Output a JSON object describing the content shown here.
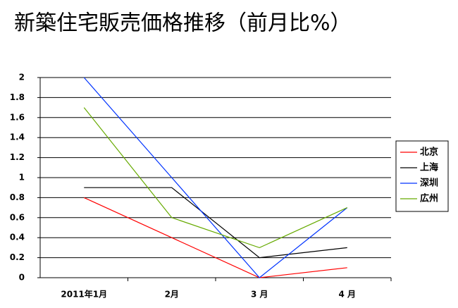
{
  "chart_data": {
    "type": "line",
    "title": "新築住宅販売価格推移（前月比%）",
    "categories": [
      "2011年1月",
      "2月",
      "3 月",
      "4 月"
    ],
    "series": [
      {
        "name": "北京",
        "color": "#ff0000",
        "values": [
          0.8,
          0.4,
          0,
          0.1
        ]
      },
      {
        "name": "上海",
        "color": "#000000",
        "values": [
          0.9,
          0.9,
          0.2,
          0.3
        ]
      },
      {
        "name": "深圳",
        "color": "#0033ff",
        "values": [
          2,
          1,
          0,
          0.7
        ]
      },
      {
        "name": "広州",
        "color": "#66aa00",
        "values": [
          1.7,
          0.6,
          0.3,
          0.7
        ]
      }
    ],
    "ylim": [
      0,
      2
    ],
    "yticks": [
      0,
      0.2,
      0.4,
      0.6,
      0.8,
      1,
      1.2,
      1.4,
      1.6,
      1.8,
      2
    ],
    "grid": true,
    "legend": "right"
  }
}
